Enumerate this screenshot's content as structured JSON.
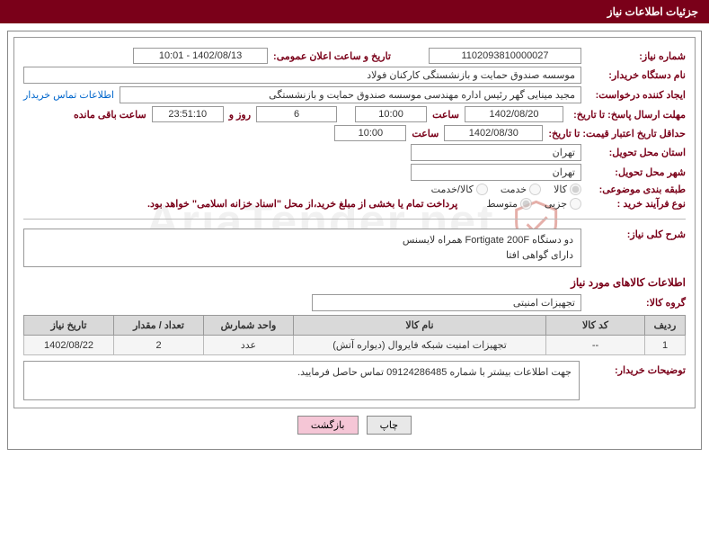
{
  "header": {
    "title": "جزئیات اطلاعات نیاز"
  },
  "labels": {
    "need_no": "شماره نیاز:",
    "announce_dt": "تاریخ و ساعت اعلان عمومی:",
    "buyer_org": "نام دستگاه خریدار:",
    "requester": "ایجاد کننده درخواست:",
    "contact_link": "اطلاعات تماس خریدار",
    "reply_deadline": "مهلت ارسال پاسخ: تا تاریخ:",
    "time": "ساعت",
    "days_and": "روز و",
    "remaining": "ساعت باقی مانده",
    "price_validity": "حداقل تاریخ اعتبار قیمت: تا تاریخ:",
    "delivery_province": "استان محل تحویل:",
    "delivery_city": "شهر محل تحویل:",
    "category": "طبقه بندی موضوعی:",
    "purchase_type": "نوع فرآیند خرید :",
    "payment_note": "پرداخت تمام یا بخشی از مبلغ خرید،از محل \"اسناد خزانه اسلامی\" خواهد بود.",
    "need_summary": "شرح کلی نیاز:",
    "goods_info_title": "اطلاعات کالاهای مورد نیاز",
    "goods_group": "گروه کالا:",
    "buyer_notes": "توضیحات خریدار:"
  },
  "fields": {
    "need_no": "1102093810000027",
    "announce_dt": "1402/08/13 - 10:01",
    "buyer_org": "موسسه صندوق حمایت و بازنشستگی کارکنان فولاد",
    "requester": "مجید مینایی گهر رئیس اداره مهندسی موسسه صندوق حمایت و بازنشستگی",
    "reply_date": "1402/08/20",
    "reply_time": "10:00",
    "days_remaining": "6",
    "countdown": "23:51:10",
    "price_date": "1402/08/30",
    "price_time": "10:00",
    "province": "تهران",
    "city": "تهران",
    "summary": "دو دستگاه Fortigate 200F همراه لایسنس\nدارای گواهی افتا",
    "goods_group": "تجهیزات امنیتی",
    "buyer_notes": "جهت اطلاعات بیشتر با شماره 09124286485 تماس حاصل فرمایید."
  },
  "radios": {
    "category": [
      {
        "label": "کالا",
        "checked": true
      },
      {
        "label": "خدمت",
        "checked": false
      },
      {
        "label": "کالا/خدمت",
        "checked": false
      }
    ],
    "purchase_type": [
      {
        "label": "جزیی",
        "checked": false
      },
      {
        "label": "متوسط",
        "checked": true
      }
    ]
  },
  "table": {
    "headers": [
      "ردیف",
      "کد کالا",
      "نام کالا",
      "واحد شمارش",
      "تعداد / مقدار",
      "تاریخ نیاز"
    ],
    "row": {
      "idx": "1",
      "code": "--",
      "name": "تجهیزات امنیت شبکه فایروال (دیواره آتش)",
      "unit": "عدد",
      "qty": "2",
      "date": "1402/08/22"
    }
  },
  "buttons": {
    "print": "چاپ",
    "back": "بازگشت"
  },
  "watermark": "AriaTender.net",
  "colors": {
    "brand": "#7a0019",
    "border": "#999999",
    "th_bg": "#d9d9d9",
    "td_bg": "#f5f5f5",
    "link": "#0066cc"
  }
}
